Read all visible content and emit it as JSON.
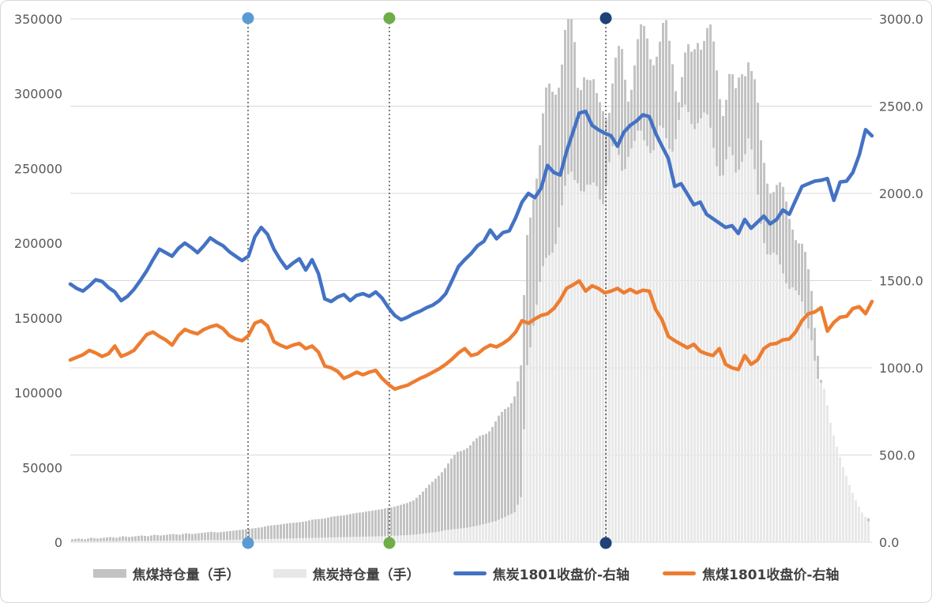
{
  "chart_data": {
    "type": "combo",
    "title": "",
    "subtitle": "",
    "xlabel": "",
    "ylabel_left": "",
    "ylabel_right": "",
    "x_axis": {
      "tick_labels_visible": false
    },
    "y_left": {
      "min": 0,
      "max": 350000,
      "step": 50000,
      "ticks": [
        "350000",
        "300000",
        "250000",
        "200000",
        "150000",
        "100000",
        "50000",
        "0"
      ]
    },
    "y_right": {
      "min": 0.0,
      "max": 3000.0,
      "step": 500.0,
      "ticks": [
        "3000.0",
        "2500.0",
        "2000.0",
        "1500.0",
        "1000.0",
        "500.0",
        "0.0"
      ]
    },
    "grid": {
      "horizontal": true,
      "vertical": false,
      "aligned_to": "right-axis"
    },
    "legend_position": "bottom",
    "series": [
      {
        "name": "焦煤持仓量（手）",
        "type": "bar",
        "axis": "left",
        "color": "#c3c3c3",
        "values": [
          2000,
          2500,
          2000,
          3000,
          2500,
          3000,
          3500,
          3000,
          4000,
          3500,
          4000,
          4500,
          4000,
          5000,
          4500,
          5000,
          5500,
          5000,
          6000,
          5500,
          6000,
          6500,
          7000,
          6500,
          7000,
          7500,
          8000,
          8500,
          9000,
          9500,
          10000,
          11000,
          11500,
          12000,
          12500,
          13000,
          13500,
          14000,
          15000,
          15500,
          16000,
          17000,
          17500,
          18000,
          19000,
          19500,
          20000,
          21000,
          21500,
          22000,
          23000,
          24000,
          25000,
          26000,
          28000,
          32000,
          36000,
          40000,
          45000,
          50000,
          55000,
          60000,
          63000,
          65000,
          68000,
          72000,
          76000,
          80000,
          85000,
          92000,
          100000,
          115000,
          200000,
          240000,
          270000,
          290000,
          300000,
          320000,
          340000,
          345000,
          310000,
          325000,
          300000,
          290000,
          300000,
          295000,
          310000,
          325000,
          310000,
          320000,
          330000,
          340000,
          335000,
          328000,
          335000,
          330000,
          305000,
          315000,
          320000,
          350000,
          340000,
          330000,
          315000,
          300000,
          310000,
          290000,
          320000,
          335000,
          300000,
          260000,
          250000,
          240000,
          230000,
          225000,
          220000,
          200000,
          185000,
          170000,
          130000,
          90000,
          72000,
          60000,
          48000,
          35000,
          26000,
          18000,
          16000
        ]
      },
      {
        "name": "焦炭持仓量（手）",
        "type": "bar",
        "axis": "left",
        "color": "#e9e8e8",
        "values": [
          500,
          600,
          500,
          700,
          600,
          700,
          800,
          700,
          900,
          800,
          900,
          1000,
          900,
          1100,
          1000,
          1100,
          1200,
          1100,
          1300,
          1200,
          1300,
          1400,
          1500,
          1400,
          1500,
          1600,
          1700,
          1800,
          1900,
          2000,
          2100,
          2200,
          2300,
          2400,
          2500,
          2600,
          2700,
          2800,
          2900,
          3000,
          3100,
          3200,
          3300,
          3400,
          3500,
          3600,
          3700,
          3800,
          3900,
          4000,
          4200,
          4400,
          4600,
          4800,
          5000,
          5500,
          6000,
          6500,
          7000,
          8000,
          8500,
          9000,
          9500,
          10000,
          11000,
          12000,
          13000,
          14000,
          16000,
          18000,
          20000,
          30000,
          120000,
          150000,
          170000,
          185000,
          200000,
          215000,
          230000,
          245000,
          250000,
          235000,
          230000,
          240000,
          235000,
          250000,
          260000,
          255000,
          265000,
          260000,
          270000,
          275000,
          265000,
          268000,
          270000,
          272000,
          280000,
          282000,
          285000,
          290000,
          280000,
          270000,
          260000,
          250000,
          255000,
          245000,
          265000,
          270000,
          240000,
          215000,
          200000,
          190000,
          180000,
          178000,
          175000,
          160000,
          150000,
          140000,
          110000,
          100000,
          80000,
          65000,
          50000,
          38000,
          28000,
          20000,
          14000
        ]
      },
      {
        "name": "焦炭1801收盘价-右轴",
        "type": "line",
        "axis": "right",
        "color": "#4472c4",
        "values": [
          1480,
          1455,
          1440,
          1470,
          1505,
          1495,
          1460,
          1435,
          1385,
          1410,
          1450,
          1500,
          1555,
          1620,
          1680,
          1660,
          1640,
          1685,
          1715,
          1690,
          1660,
          1700,
          1745,
          1720,
          1700,
          1665,
          1640,
          1615,
          1640,
          1750,
          1805,
          1765,
          1680,
          1620,
          1570,
          1600,
          1625,
          1560,
          1620,
          1540,
          1395,
          1380,
          1405,
          1420,
          1385,
          1415,
          1425,
          1410,
          1435,
          1400,
          1345,
          1300,
          1275,
          1290,
          1310,
          1325,
          1345,
          1360,
          1385,
          1425,
          1500,
          1580,
          1620,
          1655,
          1700,
          1725,
          1790,
          1740,
          1775,
          1785,
          1860,
          1950,
          2000,
          1975,
          2030,
          2160,
          2120,
          2105,
          2240,
          2350,
          2460,
          2470,
          2390,
          2365,
          2345,
          2330,
          2270,
          2350,
          2390,
          2415,
          2450,
          2440,
          2345,
          2270,
          2200,
          2040,
          2055,
          1995,
          1935,
          1950,
          1880,
          1855,
          1830,
          1805,
          1815,
          1770,
          1850,
          1800,
          1835,
          1870,
          1825,
          1850,
          1905,
          1880,
          1960,
          2040,
          2055,
          2070,
          2075,
          2085,
          1960,
          2065,
          2070,
          2120,
          2220,
          2365,
          2330
        ]
      },
      {
        "name": "焦煤1801收盘价-右轴",
        "type": "line",
        "axis": "right",
        "color": "#ed7d31",
        "values": [
          1045,
          1060,
          1075,
          1100,
          1085,
          1065,
          1080,
          1125,
          1065,
          1080,
          1100,
          1145,
          1190,
          1205,
          1180,
          1160,
          1130,
          1185,
          1220,
          1205,
          1195,
          1220,
          1235,
          1245,
          1225,
          1185,
          1165,
          1155,
          1185,
          1255,
          1270,
          1240,
          1150,
          1130,
          1115,
          1130,
          1140,
          1110,
          1125,
          1090,
          1010,
          1000,
          980,
          940,
          955,
          975,
          960,
          975,
          985,
          940,
          905,
          878,
          890,
          900,
          920,
          940,
          955,
          975,
          995,
          1020,
          1050,
          1085,
          1110,
          1070,
          1080,
          1110,
          1130,
          1120,
          1140,
          1165,
          1205,
          1270,
          1255,
          1280,
          1300,
          1310,
          1340,
          1390,
          1455,
          1475,
          1498,
          1440,
          1470,
          1455,
          1430,
          1440,
          1455,
          1430,
          1450,
          1430,
          1445,
          1440,
          1335,
          1275,
          1180,
          1155,
          1135,
          1115,
          1135,
          1095,
          1080,
          1070,
          1110,
          1020,
          1000,
          990,
          1070,
          1020,
          1045,
          1110,
          1135,
          1140,
          1160,
          1165,
          1205,
          1270,
          1310,
          1320,
          1345,
          1210,
          1260,
          1290,
          1295,
          1340,
          1350,
          1310,
          1380
        ]
      }
    ],
    "event_markers": [
      {
        "x_fraction": 0.2217,
        "dot_color": "#5b9bd5",
        "line_style": "dotted-black"
      },
      {
        "x_fraction": 0.398,
        "dot_color": "#70ad47",
        "line_style": "dotted-black"
      },
      {
        "x_fraction": 0.668,
        "dot_color": "#1f4279",
        "line_style": "dotted-black"
      }
    ],
    "colors": {
      "gridline": "#d9d9d9",
      "axis_text": "#595959",
      "legend_text": "#404040",
      "background": "#ffffff"
    }
  }
}
